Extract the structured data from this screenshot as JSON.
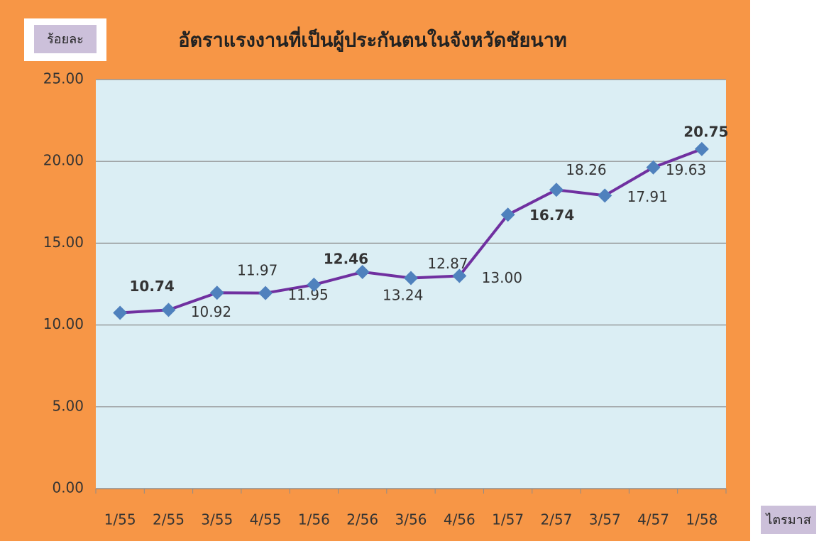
{
  "chart_data": {
    "type": "line",
    "title": "อัตราแรงงานที่เป็นผู้ประกันตนในจังหวัดชัยนาท",
    "y_label": "ร้อยละ",
    "x_label": "ไตรมาส",
    "categories": [
      "1/55",
      "2/55",
      "3/55",
      "4/55",
      "1/56",
      "2/56",
      "3/56",
      "4/56",
      "1/57",
      "2/57",
      "3/57",
      "4/57",
      "1/58"
    ],
    "series": [
      {
        "name": "อัตราแรงงานที่เป็นผู้ประกันตน",
        "color": "#7030a0",
        "marker_color": "#4f81bd",
        "values": [
          10.74,
          10.92,
          11.97,
          11.95,
          12.46,
          13.24,
          12.87,
          13.0,
          16.74,
          18.26,
          17.91,
          19.63,
          20.75
        ],
        "value_labels": [
          "10.74",
          "10.92",
          "11.97",
          "11.95",
          "12.46",
          "13.24",
          "12.87",
          "13.00",
          "16.74",
          "18.26",
          "17.91",
          "19.63",
          "20.75"
        ]
      }
    ],
    "ylim": [
      0,
      25
    ],
    "yticks": [
      {
        "value": 0,
        "label": "0.00"
      },
      {
        "value": 5,
        "label": "5.00"
      },
      {
        "value": 10,
        "label": "10.00"
      },
      {
        "value": 15,
        "label": "15.00"
      },
      {
        "value": 20,
        "label": "20.00"
      },
      {
        "value": 25,
        "label": "25.00"
      }
    ],
    "grid": true
  }
}
